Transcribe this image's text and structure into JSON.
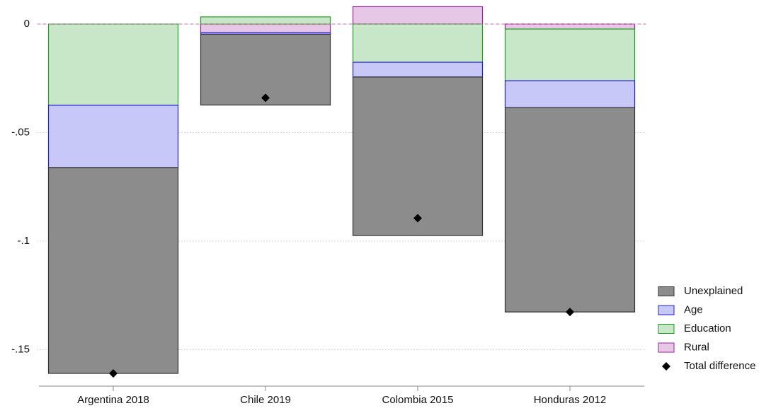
{
  "chart_data": {
    "type": "stacked-bar",
    "categories": [
      "Argentina 2018",
      "Chile 2019",
      "Colombia 2015",
      "Honduras 2012"
    ],
    "series": [
      {
        "name": "Unexplained",
        "color": "#8c8c8c",
        "stroke": "#333333",
        "values": [
          -0.0948,
          -0.0326,
          -0.073,
          -0.0941
        ]
      },
      {
        "name": "Age",
        "color": "#c8c8f8",
        "stroke": "#2020e0",
        "values": [
          -0.0287,
          -0.0007,
          -0.0068,
          -0.0124
        ]
      },
      {
        "name": "Education",
        "color": "#c8e6c8",
        "stroke": "#20a020",
        "values": [
          -0.0374,
          0.0033,
          -0.0176,
          -0.0238
        ]
      },
      {
        "name": "Rural",
        "color": "#e6c8e6",
        "stroke": "#a020a0",
        "values": [
          0,
          -0.004,
          0.008,
          -0.0023
        ]
      }
    ],
    "total": {
      "name": "Total difference",
      "color": "#000000",
      "values": [
        -0.1609,
        -0.034,
        -0.0894,
        -0.1326
      ]
    },
    "ylim": [
      -0.165,
      0.01
    ],
    "yticks": [
      0,
      {
        "value": -0.05,
        "label": "-.05"
      },
      {
        "value": -0.1,
        "label": "-.1"
      },
      {
        "value": -0.15,
        "label": "-.15"
      }
    ],
    "grid": true,
    "legend": "right"
  }
}
